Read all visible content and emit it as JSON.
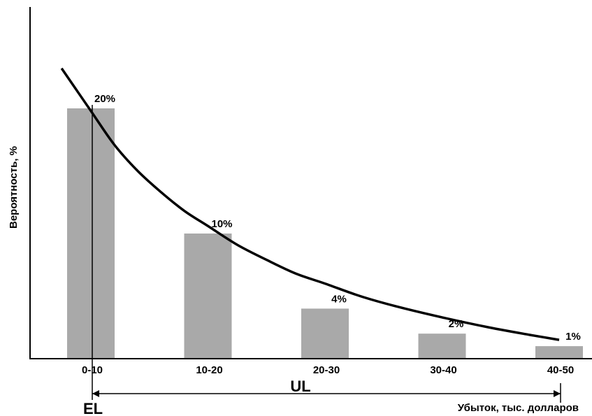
{
  "chart_data": {
    "type": "bar",
    "title": "",
    "xlabel": "Убыток, тыс. долларов",
    "ylabel": "Вероятность, %",
    "categories": [
      "0-10",
      "10-20",
      "20-30",
      "30-40",
      "40-50"
    ],
    "values": [
      20,
      10,
      4,
      2,
      1
    ],
    "data_labels": [
      "20%",
      "10%",
      "4%",
      "2%",
      "1%"
    ],
    "ylim": [
      0,
      30
    ],
    "grid": false,
    "legend": "none",
    "curve": {
      "description": "smooth decreasing curve over bars",
      "x_category_positions": [
        -0.25,
        0,
        0.2,
        0.4,
        0.6,
        0.8,
        1.0,
        1.25,
        1.5,
        1.75,
        2.0,
        2.3,
        2.6,
        3.0,
        3.4,
        3.75,
        4.0
      ],
      "y_values": [
        23.2,
        19.8,
        17.1,
        15.0,
        13.3,
        11.8,
        10.6,
        9.1,
        7.9,
        6.8,
        6.0,
        5.0,
        4.2,
        3.3,
        2.5,
        1.9,
        1.5
      ]
    },
    "annotations": {
      "el_label": "EL",
      "ul_label": "UL",
      "el_category": "0-10",
      "ul_from_category": "0-10",
      "ul_to_category": "40-50"
    },
    "colors": {
      "bar": "#a9a9a9",
      "curve": "#000000",
      "axis": "#000000"
    }
  }
}
